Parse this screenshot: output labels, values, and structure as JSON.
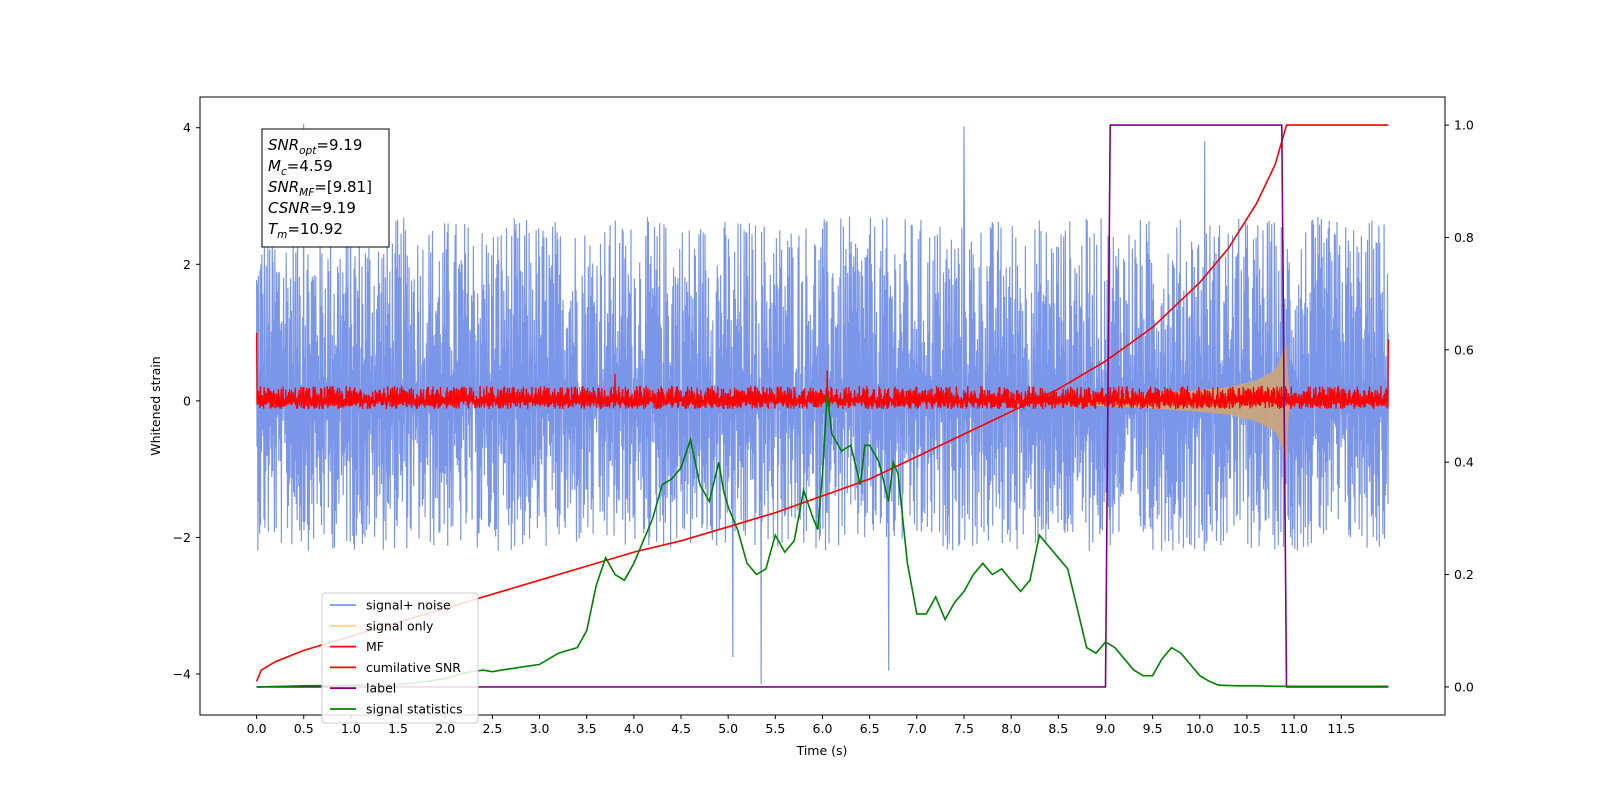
{
  "chart_data": {
    "type": "line",
    "xlabel": "Time (s)",
    "ylabel": "Whitened strain",
    "xlim": [
      -0.6,
      12.6
    ],
    "ylim_left": [
      -4.6,
      4.45
    ],
    "ylim_right": [
      -0.05,
      1.05
    ],
    "x_ticks": [
      0.0,
      0.5,
      1.0,
      1.5,
      2.0,
      2.5,
      3.0,
      3.5,
      4.0,
      4.5,
      5.0,
      5.5,
      6.0,
      6.5,
      7.0,
      7.5,
      8.0,
      8.5,
      9.0,
      9.5,
      10.0,
      10.5,
      11.0,
      11.5
    ],
    "x_tick_labels": [
      "0.0",
      "0.5",
      "1.0",
      "1.5",
      "2.0",
      "2.5",
      "3.0",
      "3.5",
      "4.0",
      "4.5",
      "5.0",
      "5.5",
      "6.0",
      "6.5",
      "7.0",
      "7.5",
      "8.0",
      "8.5",
      "9.0",
      "9.5",
      "10.0",
      "10.5",
      "11.0",
      "11.5"
    ],
    "y_ticks_left": [
      -4,
      -2,
      0,
      2,
      4
    ],
    "y_tick_labels_left": [
      "−4",
      "−2",
      "0",
      "2",
      "4"
    ],
    "y_ticks_right": [
      0.0,
      0.2,
      0.4,
      0.6,
      0.8,
      1.0
    ],
    "y_tick_labels_right": [
      "0.0",
      "0.2",
      "0.4",
      "0.6",
      "0.8",
      "1.0"
    ],
    "grid": false,
    "legend_placement": "lower-left",
    "legend": [
      {
        "label": "signal+ noise",
        "color": "#7b96e8"
      },
      {
        "label": "signal only",
        "color": "#ffd27f"
      },
      {
        "label": "MF",
        "color": "#ff0000"
      },
      {
        "label": "cumilative SNR",
        "color": "#ff0000"
      },
      {
        "label": "label",
        "color": "#800080"
      },
      {
        "label": "signal statistics",
        "color": "#008000"
      }
    ],
    "annotation": {
      "lines": [
        {
          "base": "SNR",
          "sub": "opt",
          "value": "=9.19"
        },
        {
          "base": "M",
          "sub": "c",
          "value": "=4.59"
        },
        {
          "base": "SNR",
          "sub": "MF",
          "value": "=[9.81]"
        },
        {
          "base": "CSNR",
          "sub": "",
          "value": "=9.19"
        },
        {
          "base": "T",
          "sub": "m",
          "value": "=10.92"
        }
      ]
    },
    "series": [
      {
        "name": "signal+ noise",
        "axis": "left",
        "style": "noise",
        "color": "#7b96e8",
        "x_range": [
          0.0,
          12.0
        ],
        "center": 0.0,
        "band_low": -2.2,
        "band_high": 2.7,
        "spikes": [
          [
            0.5,
            4.05
          ],
          [
            7.5,
            4.02
          ],
          [
            10.05,
            3.8
          ],
          [
            5.35,
            -4.15
          ],
          [
            6.7,
            -3.95
          ],
          [
            5.05,
            -3.75
          ]
        ]
      },
      {
        "name": "signal only",
        "axis": "left",
        "style": "envelope",
        "color": "#c9a47b",
        "x": [
          8.0,
          8.5,
          9.0,
          9.5,
          10.0,
          10.3,
          10.6,
          10.8,
          10.92,
          10.95
        ],
        "y_amp": [
          0.03,
          0.05,
          0.08,
          0.11,
          0.16,
          0.2,
          0.3,
          0.45,
          0.85,
          0.0
        ]
      },
      {
        "name": "MF",
        "axis": "left",
        "style": "noise",
        "color": "#ff0000",
        "x_range": [
          0.0,
          12.0
        ],
        "center": 0.0,
        "band_low": -0.12,
        "band_high": 0.22,
        "spikes": [
          [
            0.0,
            1.0
          ],
          [
            12.0,
            0.9
          ],
          [
            3.8,
            0.4
          ],
          [
            6.05,
            0.45
          ]
        ]
      },
      {
        "name": "cumilative SNR",
        "axis": "right",
        "color": "#ff0000",
        "x": [
          0.0,
          0.05,
          0.2,
          0.5,
          1.0,
          1.5,
          2.0,
          2.5,
          3.0,
          3.5,
          4.0,
          4.5,
          5.0,
          5.5,
          6.0,
          6.5,
          7.0,
          7.5,
          8.0,
          8.5,
          9.0,
          9.5,
          10.0,
          10.3,
          10.6,
          10.8,
          10.92,
          11.0,
          11.5,
          12.0
        ],
        "y": [
          0.01,
          0.03,
          0.045,
          0.065,
          0.09,
          0.115,
          0.14,
          0.165,
          0.19,
          0.215,
          0.24,
          0.26,
          0.285,
          0.31,
          0.34,
          0.37,
          0.41,
          0.45,
          0.49,
          0.53,
          0.58,
          0.64,
          0.72,
          0.78,
          0.86,
          0.93,
          1.0,
          1.0,
          1.0,
          1.0
        ]
      },
      {
        "name": "label",
        "axis": "right",
        "color": "#800080",
        "x": [
          0.0,
          9.0,
          9.05,
          10.87,
          10.92,
          12.0
        ],
        "y": [
          0.0,
          0.0,
          1.0,
          1.0,
          0.0,
          0.0
        ]
      },
      {
        "name": "signal statistics",
        "axis": "right",
        "color": "#008000",
        "x": [
          0.0,
          0.5,
          1.0,
          1.5,
          1.8,
          2.0,
          2.2,
          2.4,
          2.5,
          2.6,
          2.8,
          3.0,
          3.1,
          3.2,
          3.3,
          3.4,
          3.5,
          3.6,
          3.7,
          3.8,
          3.9,
          4.0,
          4.05,
          4.1,
          4.2,
          4.3,
          4.4,
          4.5,
          4.6,
          4.65,
          4.7,
          4.8,
          4.9,
          4.95,
          5.0,
          5.1,
          5.2,
          5.3,
          5.4,
          5.5,
          5.6,
          5.7,
          5.8,
          5.9,
          5.95,
          6.0,
          6.05,
          6.1,
          6.2,
          6.3,
          6.4,
          6.45,
          6.5,
          6.6,
          6.7,
          6.75,
          6.8,
          6.9,
          7.0,
          7.1,
          7.2,
          7.3,
          7.4,
          7.5,
          7.6,
          7.7,
          7.8,
          7.9,
          8.0,
          8.1,
          8.2,
          8.3,
          8.4,
          8.5,
          8.6,
          8.7,
          8.8,
          8.9,
          9.0,
          9.1,
          9.2,
          9.3,
          9.4,
          9.5,
          9.6,
          9.7,
          9.8,
          9.9,
          10.0,
          10.1,
          10.2,
          10.4,
          10.6,
          10.8,
          11.0,
          11.5,
          12.0
        ],
        "y": [
          0.0,
          0.002,
          0.003,
          0.004,
          0.01,
          0.015,
          0.025,
          0.03,
          0.027,
          0.03,
          0.035,
          0.04,
          0.05,
          0.06,
          0.065,
          0.07,
          0.1,
          0.18,
          0.23,
          0.2,
          0.19,
          0.22,
          0.24,
          0.26,
          0.3,
          0.36,
          0.37,
          0.39,
          0.44,
          0.4,
          0.36,
          0.33,
          0.4,
          0.35,
          0.32,
          0.28,
          0.22,
          0.2,
          0.21,
          0.27,
          0.24,
          0.26,
          0.35,
          0.3,
          0.28,
          0.38,
          0.52,
          0.45,
          0.42,
          0.43,
          0.36,
          0.43,
          0.43,
          0.4,
          0.33,
          0.4,
          0.38,
          0.22,
          0.13,
          0.13,
          0.16,
          0.12,
          0.15,
          0.17,
          0.2,
          0.22,
          0.2,
          0.21,
          0.19,
          0.17,
          0.19,
          0.27,
          0.25,
          0.23,
          0.21,
          0.14,
          0.07,
          0.06,
          0.08,
          0.07,
          0.05,
          0.03,
          0.02,
          0.02,
          0.05,
          0.07,
          0.06,
          0.04,
          0.02,
          0.01,
          0.003,
          0.002,
          0.002,
          0.001,
          0.001,
          0.001,
          0.001
        ]
      }
    ]
  }
}
